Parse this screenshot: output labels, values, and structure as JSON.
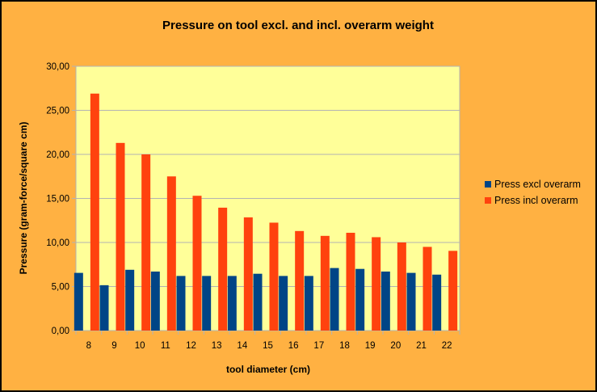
{
  "chart_data": {
    "type": "bar",
    "title": "Pressure on tool excl. and incl. overarm weight",
    "xlabel": "tool diameter (cm)",
    "ylabel": "Pressure (gram-force/square cm)",
    "categories": [
      "8",
      "9",
      "10",
      "11",
      "12",
      "13",
      "14",
      "15",
      "16",
      "17",
      "18",
      "19",
      "20",
      "21",
      "22"
    ],
    "ylim": [
      0,
      30
    ],
    "ytick_step": 5,
    "ytick_labels": [
      "0,00",
      "5,00",
      "10,00",
      "15,00",
      "20,00",
      "25,00",
      "30,00"
    ],
    "grid": true,
    "legend_position": "right",
    "plot_background": "#FFFF99",
    "chart_background": "#FFB142",
    "series": [
      {
        "name": "Press excl overarm",
        "color": "#004586",
        "values": [
          6.55,
          5.15,
          6.9,
          6.7,
          6.2,
          6.2,
          6.2,
          6.45,
          6.2,
          6.2,
          7.1,
          7.0,
          6.7,
          6.55,
          6.35
        ]
      },
      {
        "name": "Press incl overarm",
        "color": "#FF420E",
        "values": [
          26.9,
          21.3,
          20.0,
          17.5,
          15.3,
          13.95,
          12.85,
          12.25,
          11.3,
          10.75,
          11.1,
          10.6,
          10.0,
          9.5,
          9.05
        ]
      }
    ]
  }
}
